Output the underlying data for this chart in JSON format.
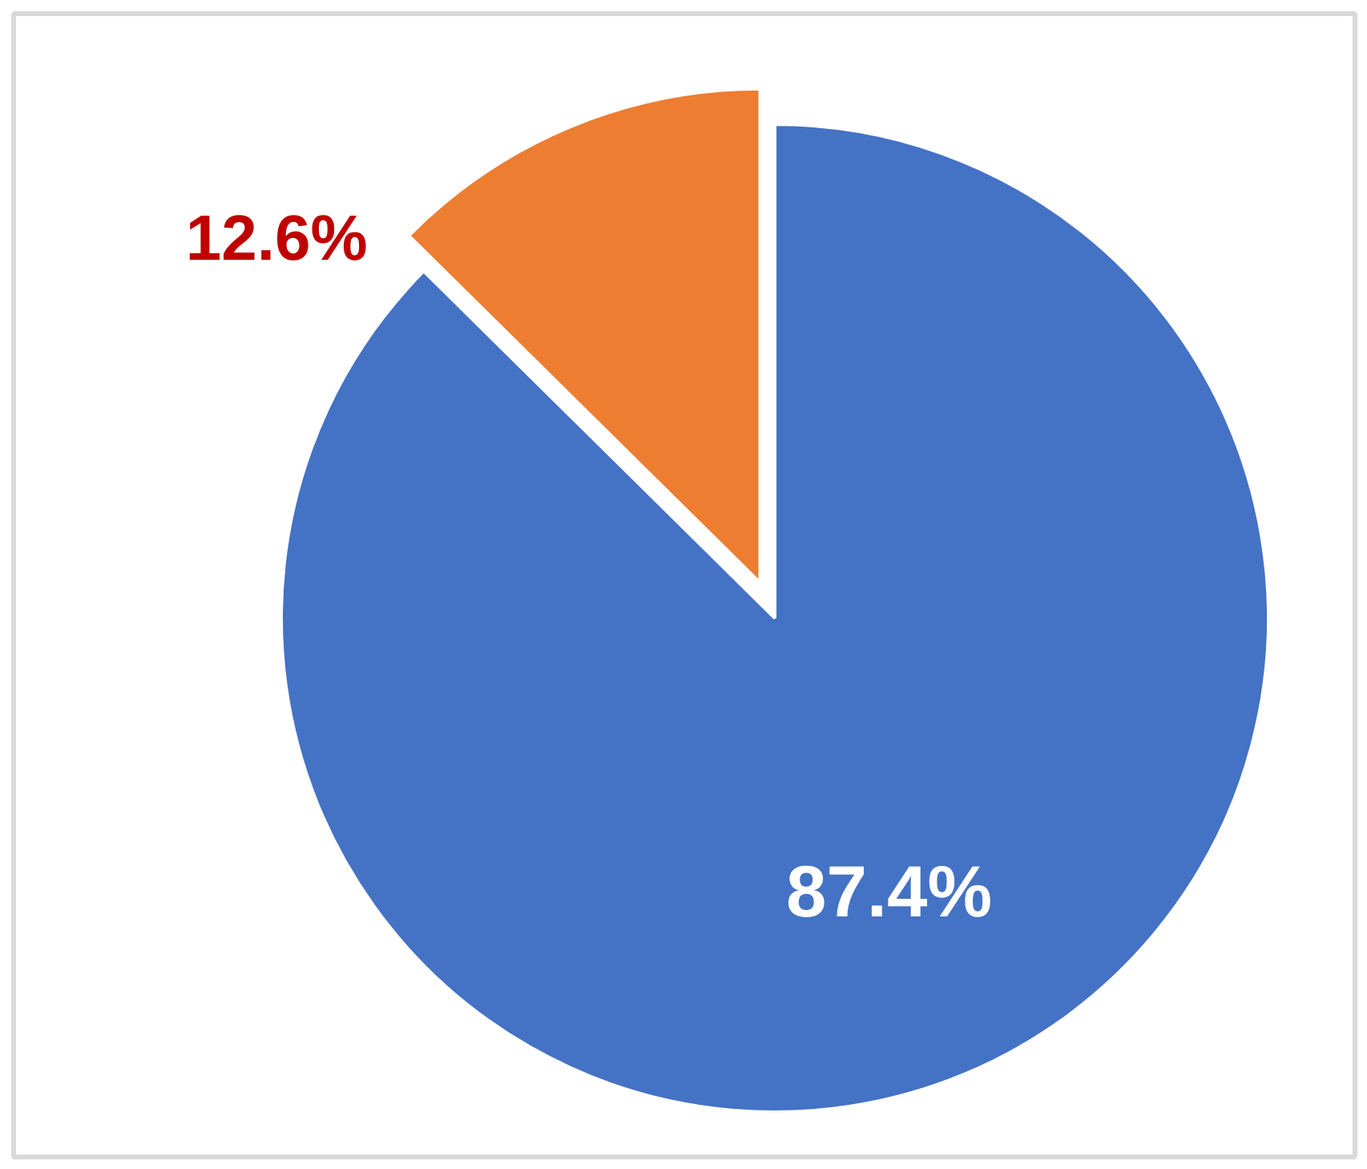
{
  "chart_data": {
    "type": "pie",
    "categories": [
      null,
      null
    ],
    "values": [
      87.4,
      12.6
    ],
    "colors": [
      "#4472c4",
      "#ed7d31"
    ],
    "value_labels": [
      "87.4%",
      "12.6%"
    ]
  }
}
